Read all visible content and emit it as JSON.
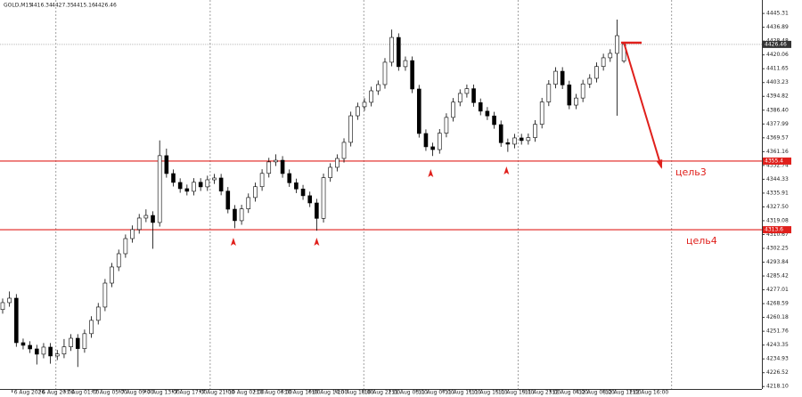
{
  "header": {
    "symbol": "GOLD,M15"
  },
  "chart_data": {
    "type": "candlestick",
    "open": [
      4265.0,
      4269.2,
      4271.9,
      4244.8,
      4243.2,
      4241.0,
      4237.8,
      4242.1,
      4236.7,
      4237.9,
      4242.3,
      4247.5,
      4241.2,
      4250.3,
      4258.4,
      4266.5,
      4281.1,
      4290.9,
      4299.0,
      4308.2,
      4313.7,
      4320.7,
      4322.3,
      4318.0,
      4358.7,
      4347.8,
      4342.4,
      4338.6,
      4337.0,
      4342.5,
      4339.7,
      4344.0,
      4345.1,
      4337.1,
      4326.1,
      4319.1,
      4326.3,
      4333.2,
      4339.8,
      4347.9,
      4354.9,
      4355.9,
      4347.8,
      4342.2,
      4338.4,
      4334.3,
      4329.9,
      4320.5,
      4345.3,
      4351.6,
      4357.0,
      4366.8,
      4383.0,
      4388.5,
      4391.2,
      4398.2,
      4402.0,
      4415.6,
      4430.7,
      4412.9,
      4416.6,
      4399.3,
      4372.2,
      4364.1,
      4362.4,
      4372.4,
      4382.0,
      4391.3,
      4396.6,
      4399.5,
      4391.0,
      4385.8,
      4382.9,
      4377.6,
      4366.6,
      4365.7,
      4369.5,
      4367.9,
      4369.7,
      4377.8,
      4391.4,
      4402.2,
      4410.1,
      4401.8,
      4389.5,
      4393.8,
      4402.4,
      4405.8,
      4413.0,
      4418.3,
      4421.0,
      4416.34
    ],
    "high": [
      4271.7,
      4276.0,
      4274.4,
      4247.3,
      4245.7,
      4243.5,
      4244.6,
      4244.6,
      4240.4,
      4247.0,
      4250.0,
      4250.0,
      4252.8,
      4260.9,
      4269.0,
      4283.6,
      4293.4,
      4301.5,
      4310.7,
      4316.2,
      4323.2,
      4326.0,
      4324.8,
      4368.0,
      4363.0,
      4350.3,
      4344.9,
      4341.1,
      4345.0,
      4345.0,
      4346.5,
      4347.6,
      4347.6,
      4339.6,
      4328.6,
      4328.8,
      4335.7,
      4342.3,
      4350.4,
      4357.4,
      4359.5,
      4358.4,
      4350.3,
      4344.7,
      4340.9,
      4336.8,
      4332.4,
      4347.8,
      4354.1,
      4359.5,
      4369.3,
      4385.5,
      4391.0,
      4393.7,
      4400.7,
      4404.5,
      4418.1,
      4435.5,
      4433.2,
      4419.1,
      4419.1,
      4401.8,
      4374.7,
      4366.6,
      4374.9,
      4384.5,
      4393.8,
      4399.1,
      4402.0,
      4402.0,
      4393.5,
      4388.3,
      4385.4,
      4380.1,
      4369.1,
      4372.0,
      4372.0,
      4372.2,
      4380.3,
      4393.9,
      4404.7,
      4412.6,
      4412.6,
      4404.3,
      4396.3,
      4404.9,
      4408.3,
      4415.5,
      4420.8,
      4423.5,
      4441.6,
      4427.35
    ],
    "low": [
      4262.5,
      4266.7,
      4242.3,
      4240.7,
      4238.5,
      4231.5,
      4235.3,
      4232.0,
      4234.2,
      4235.4,
      4239.8,
      4230.0,
      4238.7,
      4247.8,
      4255.9,
      4264.0,
      4278.6,
      4288.4,
      4296.5,
      4305.7,
      4311.2,
      4318.2,
      4302.0,
      4315.5,
      4345.3,
      4339.9,
      4336.1,
      4334.5,
      4334.5,
      4337.2,
      4337.2,
      4341.5,
      4334.6,
      4323.6,
      4314.5,
      4316.6,
      4323.8,
      4330.7,
      4337.3,
      4345.4,
      4352.4,
      4345.3,
      4339.7,
      4335.9,
      4331.8,
      4327.4,
      4313.0,
      4318.0,
      4342.8,
      4349.1,
      4354.5,
      4364.3,
      4380.5,
      4386.0,
      4388.7,
      4395.7,
      4399.5,
      4413.1,
      4410.4,
      4410.4,
      4396.8,
      4369.7,
      4361.6,
      4358.5,
      4359.9,
      4369.9,
      4379.5,
      4388.8,
      4394.1,
      4388.5,
      4383.3,
      4380.4,
      4375.1,
      4364.1,
      4361.0,
      4363.2,
      4365.4,
      4365.4,
      4367.2,
      4375.3,
      4388.9,
      4399.7,
      4399.3,
      4387.0,
      4387.0,
      4391.3,
      4399.9,
      4403.3,
      4410.5,
      4415.8,
      4383.0,
      4415.16
    ],
    "close": [
      4269.2,
      4271.9,
      4244.8,
      4243.2,
      4241.0,
      4237.8,
      4242.1,
      4236.7,
      4237.9,
      4242.3,
      4247.5,
      4241.2,
      4250.3,
      4258.4,
      4266.5,
      4281.1,
      4290.9,
      4299.0,
      4308.2,
      4313.7,
      4320.7,
      4322.3,
      4318.0,
      4358.7,
      4347.8,
      4342.4,
      4338.6,
      4337.0,
      4342.5,
      4339.7,
      4344.0,
      4345.1,
      4337.1,
      4326.1,
      4319.1,
      4326.3,
      4333.2,
      4339.8,
      4347.9,
      4354.9,
      4355.9,
      4347.8,
      4342.2,
      4338.4,
      4334.3,
      4329.9,
      4320.5,
      4345.3,
      4351.6,
      4357.0,
      4366.8,
      4383.0,
      4388.5,
      4391.2,
      4398.2,
      4402.0,
      4415.6,
      4430.7,
      4412.9,
      4416.6,
      4399.3,
      4372.2,
      4364.1,
      4362.4,
      4372.4,
      4382.0,
      4391.3,
      4396.6,
      4399.5,
      4391.0,
      4385.8,
      4382.9,
      4377.6,
      4366.6,
      4365.7,
      4369.5,
      4367.9,
      4369.7,
      4377.8,
      4391.4,
      4402.2,
      4410.1,
      4401.8,
      4389.5,
      4393.8,
      4402.4,
      4405.8,
      4413.0,
      4418.3,
      4421.0,
      4431.8,
      4426.46
    ],
    "xlim": [
      -0.39,
      111.22
    ],
    "ylim": [
      4216.6,
      4453.5
    ],
    "yticks": [
      {
        "value": 4218.1,
        "label": "4218.10"
      },
      4226.52,
      4234.93,
      4243.35,
      4251.76,
      4260.18,
      4268.59,
      4277.01,
      4285.42,
      4293.84,
      4302.25,
      4310.67,
      4319.08,
      {
        "value": 4327.5,
        "label": "4327.50"
      },
      4335.91,
      4344.33,
      4352.74,
      4361.16,
      4369.57,
      4377.99,
      {
        "value": 4386.4,
        "label": "4386.40"
      },
      4394.82,
      4403.23,
      4411.65,
      4420.06,
      4428.48,
      4436.89,
      4445.31
    ],
    "xticks": [
      {
        "value": 1.4,
        "label": "6 Aug 2026"
      },
      {
        "value": 5.5,
        "label": "6 Aug 20:00"
      },
      {
        "value": 9.1,
        "label": "7 Aug 01:00"
      },
      {
        "value": 13.2,
        "label": "7 Aug 05:00"
      },
      {
        "value": 17.1,
        "label": "7 Aug 09:00"
      },
      {
        "value": 20.9,
        "label": "7 Aug 13:00"
      },
      {
        "value": 24.9,
        "label": "7 Aug 17:00"
      },
      {
        "value": 28.9,
        "label": "7 Aug 21:00"
      },
      {
        "value": 32.8,
        "label": "10 Aug 02:00"
      },
      {
        "value": 36.9,
        "label": "10 Aug 06:00"
      },
      {
        "value": 41.0,
        "label": "10 Aug 10:00"
      },
      {
        "value": 45.0,
        "label": "10 Aug 14:00"
      },
      {
        "value": 48.8,
        "label": "10 Aug 18:00"
      },
      {
        "value": 52.7,
        "label": "10 Aug 22:00"
      },
      {
        "value": 56.7,
        "label": "11 Aug 03:00"
      },
      {
        "value": 60.6,
        "label": "11 Aug 07:00"
      },
      {
        "value": 64.5,
        "label": "11 Aug 11:00"
      },
      {
        "value": 68.4,
        "label": "11 Aug 15:00"
      },
      {
        "value": 72.3,
        "label": "11 Aug 19:00"
      },
      {
        "value": 76.2,
        "label": "11 Aug 23:00"
      },
      {
        "value": 80.2,
        "label": "12 Aug 04:00"
      },
      {
        "value": 84.1,
        "label": "12 Aug 08:00"
      },
      {
        "value": 88.0,
        "label": "12 Aug 12:00"
      },
      {
        "value": 92.0,
        "label": "12 Aug 16:00"
      }
    ],
    "separators": [
      7.8,
      30.4,
      52.9,
      75.5,
      98.0
    ],
    "levels": [
      {
        "value": 4355.4,
        "note": "цель3"
      },
      {
        "value": 4313.6,
        "note": "цель4"
      }
    ],
    "level_color": "#e0201c",
    "markers": [
      {
        "x": 33.8,
        "y": 4306.05
      },
      {
        "x": 46.0,
        "y": 4306.05
      },
      {
        "x": 62.7,
        "y": 4347.8
      },
      {
        "x": 73.8,
        "y": 4349.4
      }
    ],
    "target_line": {
      "x": [
        90.6,
        93.6
      ],
      "y": [
        4427.5,
        4427.5
      ]
    },
    "arrow": {
      "x": [
        91.0,
        96.5
      ],
      "y": [
        4427.5,
        4351.6
      ]
    }
  }
}
